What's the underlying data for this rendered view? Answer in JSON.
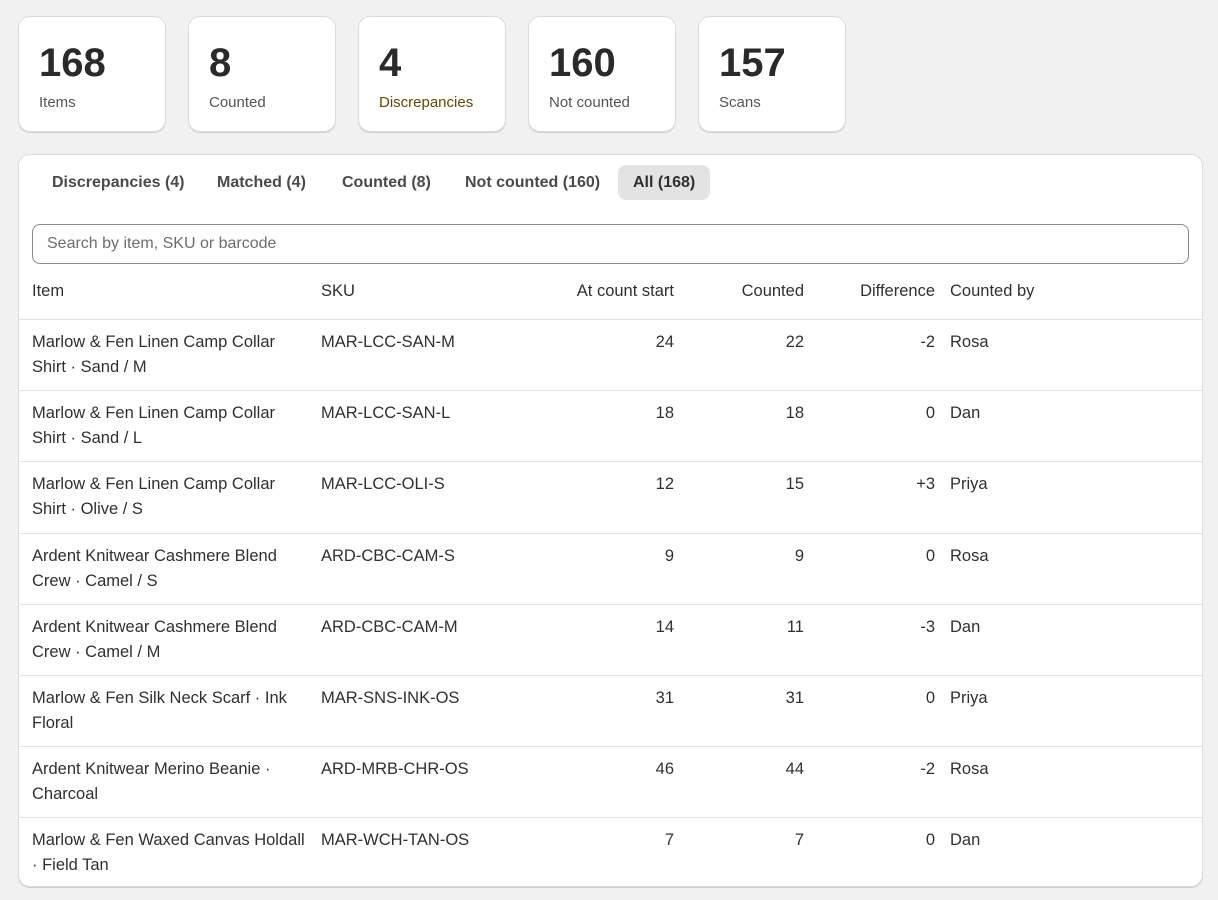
{
  "stats": [
    {
      "value": 168,
      "label": "Items"
    },
    {
      "value": 8,
      "label": "Counted"
    },
    {
      "value": 4,
      "label": "Discrepancies"
    },
    {
      "value": 160,
      "label": "Not counted"
    },
    {
      "value": 157,
      "label": "Scans"
    }
  ],
  "tabs": [
    "Discrepancies (4)",
    "Matched (4)",
    "Counted (8)",
    "Not counted (160)",
    "All (168)"
  ],
  "search_placeholder": "Search by item, SKU or barcode",
  "table": {
    "columns": [
      "Item",
      "SKU",
      "At count start",
      "Counted",
      "Difference",
      "Counted by"
    ],
    "rows": [
      [
        "Marlow & Fen Linen Camp Collar Shirt · Sand / M",
        "MAR-LCC-SAN-M",
        24,
        22,
        "-2",
        "Rosa"
      ],
      [
        "Marlow & Fen Linen Camp Collar Shirt · Sand / L",
        "MAR-LCC-SAN-L",
        18,
        18,
        "0",
        "Dan"
      ],
      [
        "Marlow & Fen Linen Camp Collar Shirt · Olive / S",
        "MAR-LCC-OLI-S",
        12,
        15,
        "+3",
        "Priya"
      ],
      [
        "Ardent Knitwear Cashmere Blend Crew · Camel / S",
        "ARD-CBC-CAM-S",
        9,
        9,
        "0",
        "Rosa"
      ],
      [
        "Ardent Knitwear Cashmere Blend Crew · Camel / M",
        "ARD-CBC-CAM-M",
        14,
        11,
        "-3",
        "Dan"
      ],
      [
        "Marlow & Fen Silk Neck Scarf · Ink Floral",
        "MAR-SNS-INK-OS",
        31,
        31,
        "0",
        "Priya"
      ],
      [
        "Ardent Knitwear Merino Beanie · Charcoal",
        "ARD-MRB-CHR-OS",
        46,
        44,
        "-2",
        "Rosa"
      ],
      [
        "Marlow & Fen Waxed Canvas Holdall · Field Tan",
        "MAR-WCH-TAN-OS",
        7,
        7,
        "0",
        "Dan"
      ]
    ]
  }
}
